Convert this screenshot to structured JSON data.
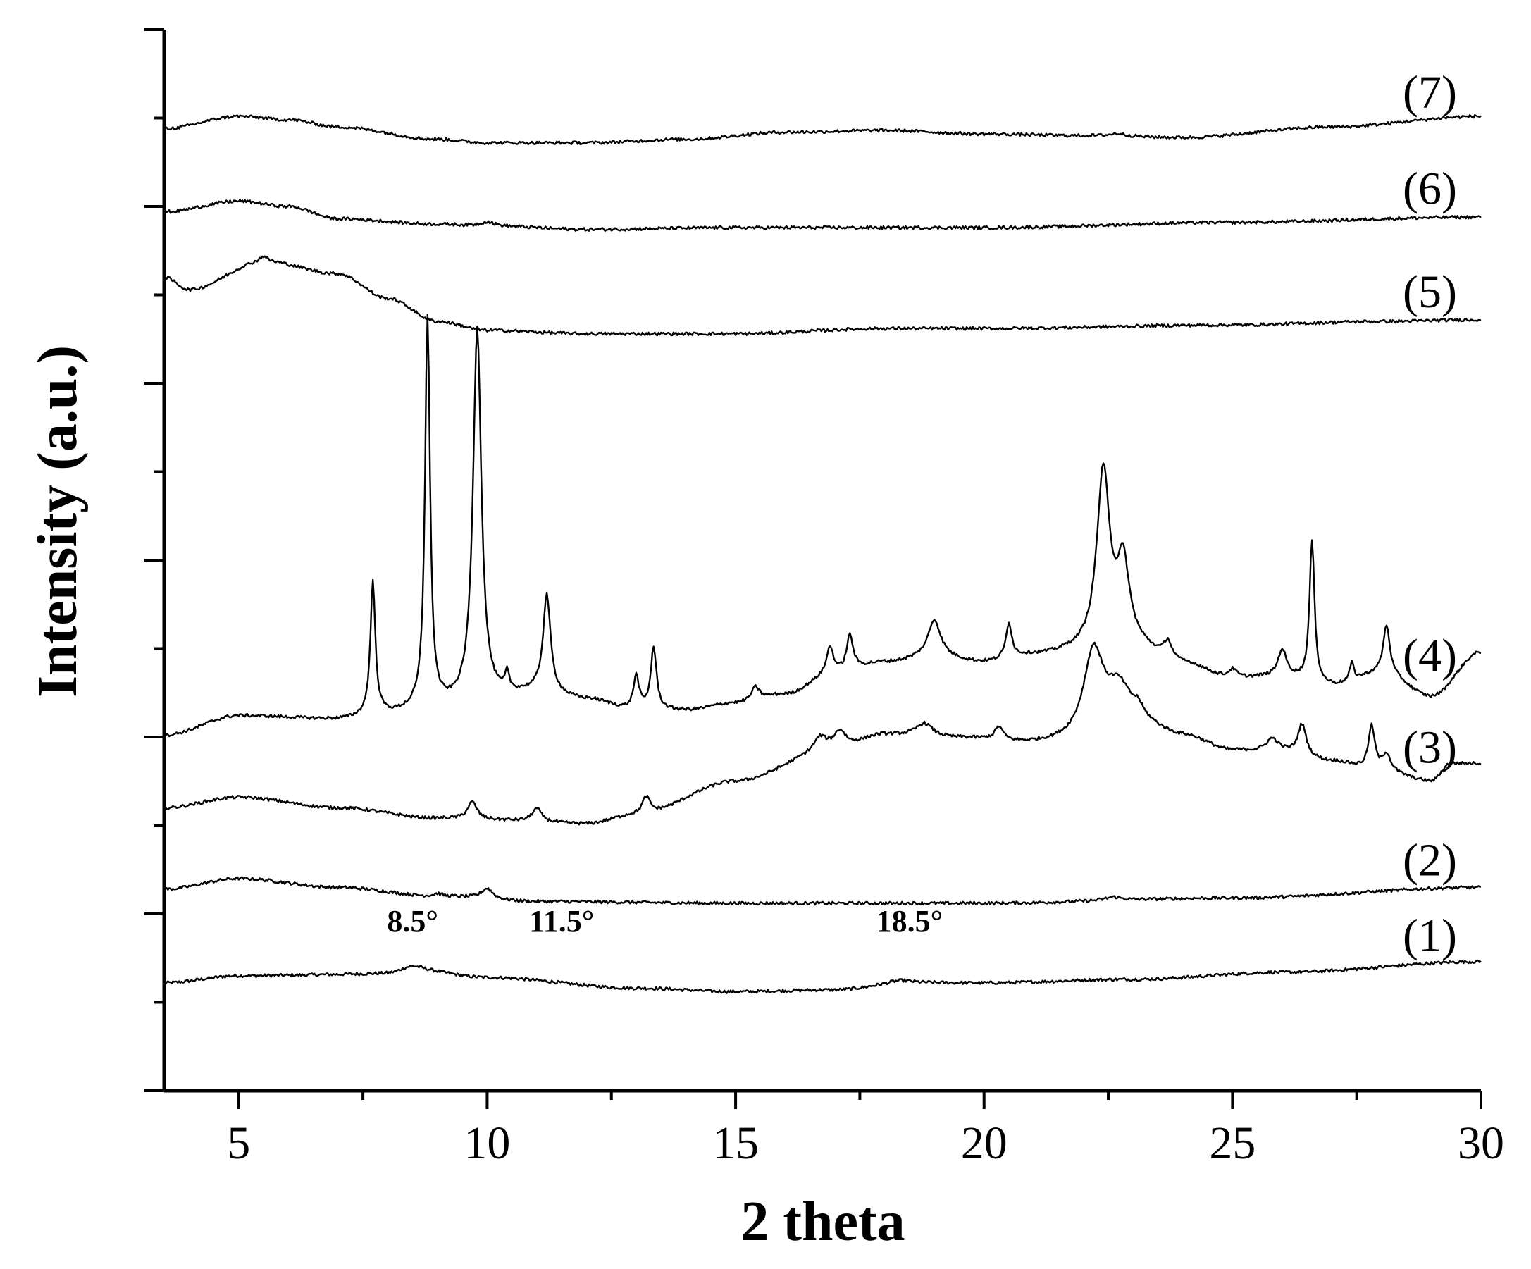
{
  "chart_data": {
    "type": "line",
    "title": "",
    "xlabel": "2 theta",
    "ylabel": "Intensity (a.u.)",
    "xlim": [
      3.5,
      30
    ],
    "ylim": [
      0,
      12
    ],
    "x_ticks": [
      5,
      10,
      15,
      20,
      25,
      30
    ],
    "x_tick_labels": [
      "5",
      "10",
      "15",
      "20",
      "25",
      "30"
    ],
    "y_tick_labels_shown": false,
    "grid": false,
    "legend": "none",
    "colors": {
      "trace": "#000000",
      "axis": "#000000",
      "background": "#ffffff"
    },
    "annotations": [
      {
        "text": "8.5°",
        "x": 8.5
      },
      {
        "text": "11.5°",
        "x": 11.5
      },
      {
        "text": "18.5°",
        "x": 18.5
      }
    ],
    "series": [
      {
        "name": "(1)",
        "baseline": [
          [
            3.5,
            1.22
          ],
          [
            5,
            1.3
          ],
          [
            8,
            1.32
          ],
          [
            8.5,
            1.36
          ],
          [
            10,
            1.28
          ],
          [
            13,
            1.16
          ],
          [
            15,
            1.12
          ],
          [
            17,
            1.14
          ],
          [
            18.5,
            1.22
          ],
          [
            20,
            1.22
          ],
          [
            23,
            1.26
          ],
          [
            26,
            1.34
          ],
          [
            30,
            1.46
          ]
        ],
        "peaks": [
          [
            8.5,
            0.05,
            0.3
          ],
          [
            18.3,
            0.03,
            0.3
          ]
        ]
      },
      {
        "name": "(2)",
        "baseline": [
          [
            3.5,
            2.28
          ],
          [
            5,
            2.4
          ],
          [
            7,
            2.3
          ],
          [
            9,
            2.2
          ],
          [
            11,
            2.14
          ],
          [
            15,
            2.12
          ],
          [
            20,
            2.12
          ],
          [
            25,
            2.18
          ],
          [
            30,
            2.3
          ]
        ],
        "peaks": [
          [
            10.0,
            0.12,
            0.14
          ],
          [
            9.0,
            0.03,
            0.1
          ],
          [
            22.6,
            0.04,
            0.2
          ]
        ]
      },
      {
        "name": "(3)",
        "baseline": [
          [
            3.5,
            3.2
          ],
          [
            5,
            3.32
          ],
          [
            7,
            3.2
          ],
          [
            9,
            3.08
          ],
          [
            10,
            3.06
          ],
          [
            12,
            3.02
          ],
          [
            13,
            3.12
          ],
          [
            15,
            3.5
          ],
          [
            17,
            3.86
          ],
          [
            18,
            4.02
          ],
          [
            19.5,
            3.98
          ],
          [
            21,
            3.92
          ],
          [
            22,
            3.92
          ],
          [
            23,
            4.14
          ],
          [
            24,
            4.0
          ],
          [
            25,
            3.84
          ],
          [
            26,
            3.82
          ],
          [
            27,
            3.72
          ],
          [
            28,
            3.6
          ],
          [
            29,
            3.5
          ],
          [
            29.4,
            3.7
          ],
          [
            30,
            3.7
          ]
        ],
        "peaks": [
          [
            9.7,
            0.2,
            0.12
          ],
          [
            11.0,
            0.15,
            0.12
          ],
          [
            13.2,
            0.2,
            0.1
          ],
          [
            16.7,
            0.15,
            0.15
          ],
          [
            17.1,
            0.2,
            0.15
          ],
          [
            18.8,
            0.15,
            0.2
          ],
          [
            20.3,
            0.15,
            0.1
          ],
          [
            22.2,
            1.0,
            0.25
          ],
          [
            22.7,
            0.4,
            0.3
          ],
          [
            23.1,
            0.1,
            0.1
          ],
          [
            25.8,
            0.15,
            0.15
          ],
          [
            26.4,
            0.35,
            0.1
          ],
          [
            27.8,
            0.5,
            0.08
          ],
          [
            28.1,
            0.2,
            0.1
          ]
        ]
      },
      {
        "name": "(4)",
        "baseline": [
          [
            3.5,
            4.02
          ],
          [
            5,
            4.24
          ],
          [
            7,
            4.2
          ],
          [
            8,
            4.26
          ],
          [
            9,
            4.34
          ],
          [
            10,
            4.42
          ],
          [
            11,
            4.5
          ],
          [
            12,
            4.42
          ],
          [
            13,
            4.3
          ],
          [
            14,
            4.3
          ],
          [
            15,
            4.38
          ],
          [
            16,
            4.48
          ],
          [
            17,
            4.72
          ],
          [
            18,
            4.84
          ],
          [
            19,
            4.9
          ],
          [
            20,
            4.84
          ],
          [
            21,
            4.92
          ],
          [
            22,
            4.96
          ],
          [
            23,
            5.0
          ],
          [
            24,
            4.82
          ],
          [
            25,
            4.66
          ],
          [
            26,
            4.68
          ],
          [
            27,
            4.58
          ],
          [
            28,
            4.72
          ],
          [
            29,
            4.46
          ],
          [
            30,
            4.96
          ]
        ],
        "peaks": [
          [
            7.7,
            1.5,
            0.06
          ],
          [
            8.8,
            4.4,
            0.06
          ],
          [
            9.8,
            4.2,
            0.1
          ],
          [
            10.4,
            0.2,
            0.05
          ],
          [
            11.2,
            1.1,
            0.09
          ],
          [
            13.0,
            0.38,
            0.07
          ],
          [
            13.35,
            0.7,
            0.07
          ],
          [
            15.4,
            0.15,
            0.1
          ],
          [
            16.9,
            0.3,
            0.08
          ],
          [
            17.3,
            0.4,
            0.08
          ],
          [
            19.0,
            0.42,
            0.15
          ],
          [
            20.5,
            0.4,
            0.07
          ],
          [
            22.4,
            2.0,
            0.16
          ],
          [
            22.8,
            0.9,
            0.15
          ],
          [
            23.7,
            0.2,
            0.1
          ],
          [
            25.0,
            0.1,
            0.1
          ],
          [
            26.0,
            0.3,
            0.1
          ],
          [
            26.6,
            1.6,
            0.06
          ],
          [
            27.4,
            0.2,
            0.05
          ],
          [
            28.1,
            0.55,
            0.08
          ]
        ]
      },
      {
        "name": "(5)",
        "baseline": [
          [
            3.5,
            9.2
          ],
          [
            4,
            9.06
          ],
          [
            5.5,
            9.38
          ],
          [
            7,
            9.24
          ],
          [
            8,
            8.96
          ],
          [
            9,
            8.7
          ],
          [
            10,
            8.6
          ],
          [
            12,
            8.56
          ],
          [
            15,
            8.56
          ],
          [
            18,
            8.62
          ],
          [
            20,
            8.62
          ],
          [
            25,
            8.66
          ],
          [
            28,
            8.7
          ],
          [
            30,
            8.72
          ]
        ],
        "peaks": [
          [
            5.5,
            0.06,
            0.08
          ]
        ]
      },
      {
        "name": "(6)",
        "baseline": [
          [
            3.5,
            9.94
          ],
          [
            5,
            10.06
          ],
          [
            6,
            10.0
          ],
          [
            7,
            9.86
          ],
          [
            9,
            9.8
          ],
          [
            10,
            9.78
          ],
          [
            12,
            9.74
          ],
          [
            15,
            9.76
          ],
          [
            20,
            9.76
          ],
          [
            25,
            9.82
          ],
          [
            30,
            9.88
          ]
        ],
        "peaks": [
          [
            10.0,
            0.05,
            0.15
          ]
        ]
      },
      {
        "name": "(7)",
        "baseline": [
          [
            3.5,
            10.88
          ],
          [
            5,
            11.02
          ],
          [
            6,
            10.98
          ],
          [
            7,
            10.9
          ],
          [
            9,
            10.76
          ],
          [
            10,
            10.72
          ],
          [
            12,
            10.72
          ],
          [
            14,
            10.76
          ],
          [
            16,
            10.84
          ],
          [
            18,
            10.86
          ],
          [
            20,
            10.82
          ],
          [
            22,
            10.8
          ],
          [
            24,
            10.78
          ],
          [
            27,
            10.9
          ],
          [
            30,
            11.02
          ]
        ],
        "peaks": [
          [
            22.7,
            0.03,
            0.2
          ]
        ]
      }
    ]
  }
}
